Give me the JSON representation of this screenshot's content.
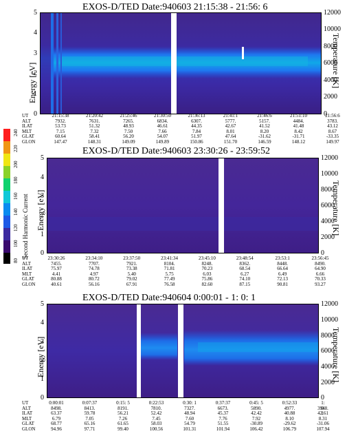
{
  "chart_data": [
    {
      "type": "heatmap",
      "title": "EXOS-D/TED   Date:940603  21:15:38 - 21:56: 6",
      "ylabel": "Energy [eV]",
      "y2label": "Temperature [K]",
      "ylim": [
        0,
        5
      ],
      "y2lim": [
        0,
        12000
      ],
      "yticks": [
        "0",
        "1",
        "2",
        "3",
        "4",
        "5"
      ],
      "y2ticks": [
        "0",
        "2000",
        "4000",
        "6000",
        "8000",
        "10000",
        "12000"
      ],
      "row_labels": [
        "UT",
        "ALT",
        "ILAT",
        "MLT",
        "GLAT",
        "GLON"
      ],
      "columns": [
        [
          "21:15:38",
          "7932.",
          "53.73",
          "7.15",
          "60.64",
          "147.47"
        ],
        [
          "21:20:42",
          "7631.",
          "51.32",
          "7.32",
          "58.41",
          "148.31"
        ],
        [
          "21:25:46",
          "7265.",
          "48.93",
          "7.50",
          "56.20",
          "149.09"
        ],
        [
          "21:30:50",
          "6834.",
          "46.61",
          "7.66",
          "54.07",
          "149.89"
        ],
        [
          "21:36:13",
          "6307.",
          "44.35",
          "7.84",
          "51.97",
          "150.86"
        ],
        [
          "21:41:1",
          "5777.",
          "42.67",
          "8.01",
          "47.64",
          "151.70"
        ],
        [
          "21:46:6",
          "5157.",
          "41.52",
          "8.20",
          "-31.62",
          "146.59"
        ],
        [
          "21:51:10",
          "4484.",
          "41.48",
          "8.42",
          "-31.71",
          "148.12"
        ],
        [
          "21:56:6",
          "3783.",
          "43.12",
          "8.67",
          "-33.35",
          "149.97"
        ]
      ]
    },
    {
      "type": "heatmap",
      "title": "EXOS-D/TED   Date:940603  23:30:26 - 23:59:52",
      "ylabel": "Energy [eV]",
      "y2label": "Temperature [K]",
      "ylim": [
        0,
        5
      ],
      "y2lim": [
        0,
        12000
      ],
      "yticks": [
        "0",
        "1",
        "2",
        "3",
        "4",
        "5"
      ],
      "y2ticks": [
        "0",
        "2000",
        "4000",
        "6000",
        "8000",
        "10000",
        "12000"
      ],
      "row_labels": [
        "UT",
        "ALT",
        "ILAT",
        "MLT",
        "GLAT",
        "GLON"
      ],
      "columns": [
        [
          "23:30:26",
          "7455.",
          "75.97",
          "4.41",
          "80.88",
          "40.61"
        ],
        [
          "23:34:10",
          "7707.",
          "74.78",
          "4.97",
          "80.72",
          "56.16"
        ],
        [
          "23:37:50",
          "7921.",
          "73.38",
          "5.40",
          "79.02",
          "67.91"
        ],
        [
          "23:41:34",
          "8104.",
          "71.81",
          "5.75",
          "77.49",
          "76.58"
        ],
        [
          "23:45:10",
          "8248.",
          "70.23",
          "6.03",
          "75.86",
          "82.60"
        ],
        [
          "23:48:54",
          "8362.",
          "68.54",
          "6.27",
          "74.10",
          "87.15"
        ],
        [
          "23:53:1",
          "8448.",
          "66.64",
          "6.49",
          "72.13",
          "90.81"
        ],
        [
          "23:56:45",
          "8490.",
          "64.90",
          "6.66",
          "70.33",
          "93.27"
        ]
      ]
    },
    {
      "type": "heatmap",
      "title": "EXOS-D/TED   Date:940604  0:00:01 - 1: 0: 1",
      "ylabel": "Energy [eV]",
      "y2label": "Temperature [K]",
      "ylim": [
        0,
        5
      ],
      "y2lim": [
        0,
        12000
      ],
      "yticks": [
        "0",
        "1",
        "2",
        "3",
        "4",
        "5"
      ],
      "y2ticks": [
        "0",
        "2000",
        "4000",
        "6000",
        "8000",
        "10000",
        "12000"
      ],
      "row_labels": [
        "UT",
        "ALT",
        "ILAT",
        "MLT",
        "GLAT",
        "GLON"
      ],
      "columns": [
        [
          "0:00:01",
          "8498.",
          "63.37",
          "6.79",
          "68.77",
          "94.96"
        ],
        [
          "0:07:37",
          "8413.",
          "59.78",
          "7.05",
          "65.16",
          "97.71"
        ],
        [
          "0:15: 5",
          "8191.",
          "56.21",
          "7.26",
          "61.65",
          "99.40"
        ],
        [
          "0:22:53",
          "7810.",
          "52.42",
          "7.45",
          "58.03",
          "100.56"
        ],
        [
          "0:30: 1",
          "7327.",
          "48.94",
          "7.60",
          "54.79",
          "101.31"
        ],
        [
          "0:37:37",
          "6673.",
          "45.37",
          "7.76",
          "51.55",
          "101.94"
        ],
        [
          "0:45: 5",
          "5890.",
          "42.42",
          "7.92",
          "-30.89",
          "106.42"
        ],
        [
          "0:52:33",
          "4977.",
          "40.88",
          "8.10",
          "-29.62",
          "106.79"
        ],
        [
          "1: 0: 1",
          "3948.",
          "42.61",
          "8.31",
          "-31.06",
          "107.94"
        ]
      ]
    }
  ],
  "colorbar": {
    "label": "Second Harmonic Current",
    "ticks": [
      "80",
      "100",
      "120",
      "140",
      "160",
      "180",
      "200",
      "220",
      "240"
    ],
    "range": [
      80,
      240
    ],
    "colors": [
      "#000000",
      "#3a0a6e",
      "#3c2aa0",
      "#1e5ae6",
      "#0a8cf0",
      "#10c8d8",
      "#10d26e",
      "#8ad228",
      "#f0e614",
      "#f09614",
      "#ff1e1e"
    ]
  }
}
